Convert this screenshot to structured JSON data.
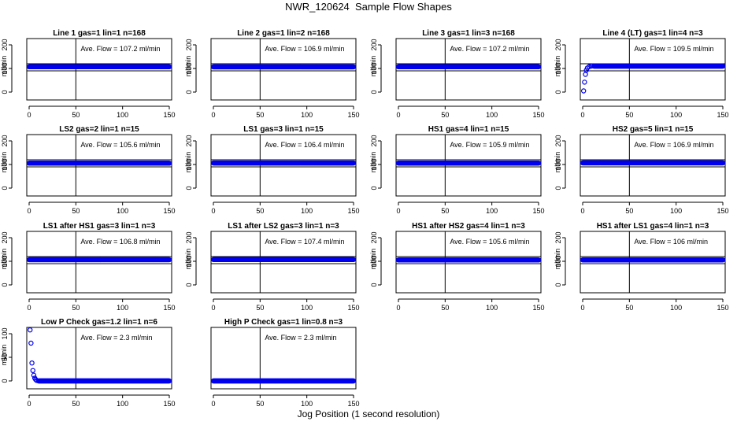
{
  "figure": {
    "title": "NWR_120624  Sample Flow Shapes",
    "xlabel": "Jog Position (1 second resolution)",
    "point_color": "#0000ee"
  },
  "chart_data": [
    {
      "type": "scatter",
      "title": "Line 1 gas=1 lin=1 n=168",
      "annotation": "Ave. Flow = 107.2  ml/min",
      "ylabel": "ml/min",
      "xlim": [
        0,
        150
      ],
      "ylim": [
        0,
        200
      ],
      "xticks": [
        0,
        50,
        100,
        150
      ],
      "yticks": [
        0,
        100,
        200
      ],
      "ytick_labels": [
        "0",
        "100",
        "200"
      ],
      "vline": 50,
      "hlines": [
        90,
        120
      ],
      "x_range": [
        0,
        150
      ],
      "y": 107.2
    },
    {
      "type": "scatter",
      "title": "Line 2 gas=1 lin=2 n=168",
      "annotation": "Ave. Flow = 106.9  ml/min",
      "ylabel": "ml/min",
      "xlim": [
        0,
        150
      ],
      "ylim": [
        0,
        200
      ],
      "xticks": [
        0,
        50,
        100,
        150
      ],
      "yticks": [
        0,
        100,
        200
      ],
      "ytick_labels": [
        "0",
        "100",
        "200"
      ],
      "vline": 50,
      "hlines": [
        90,
        120
      ],
      "x_range": [
        0,
        150
      ],
      "y": 106.9
    },
    {
      "type": "scatter",
      "title": "Line 3 gas=1 lin=3 n=168",
      "annotation": "Ave. Flow = 107.2  ml/min",
      "ylabel": "ml/min",
      "xlim": [
        0,
        150
      ],
      "ylim": [
        0,
        200
      ],
      "xticks": [
        0,
        50,
        100,
        150
      ],
      "yticks": [
        0,
        100,
        200
      ],
      "ytick_labels": [
        "0",
        "100",
        "200"
      ],
      "vline": 50,
      "hlines": [
        90,
        120
      ],
      "x_range": [
        0,
        150
      ],
      "y": 107.2
    },
    {
      "type": "scatter",
      "title": "Line 4 (LT) gas=1 lin=4 n=3",
      "annotation": "Ave. Flow = 109.5  ml/min",
      "ylabel": "ml/min",
      "xlim": [
        0,
        150
      ],
      "ylim": [
        0,
        200
      ],
      "xticks": [
        0,
        50,
        100,
        150
      ],
      "yticks": [
        0,
        100,
        200
      ],
      "ytick_labels": [
        "0",
        "100",
        "200"
      ],
      "vline": 50,
      "hlines": [
        90,
        120
      ],
      "x_range": [
        12,
        150
      ],
      "y": 110,
      "extra_points": [
        {
          "x": 1,
          "y": 5
        },
        {
          "x": 2,
          "y": 42
        },
        {
          "x": 3,
          "y": 75
        },
        {
          "x": 4,
          "y": 93
        },
        {
          "x": 5,
          "y": 102
        },
        {
          "x": 7,
          "y": 108
        },
        {
          "x": 9,
          "y": 110
        },
        {
          "x": 10,
          "y": 111
        }
      ]
    },
    {
      "type": "scatter",
      "title": "LS2 gas=2 lin=1 n=15",
      "annotation": "Ave. Flow = 105.6  ml/min",
      "ylabel": "ml/min",
      "xlim": [
        0,
        150
      ],
      "ylim": [
        0,
        200
      ],
      "xticks": [
        0,
        50,
        100,
        150
      ],
      "yticks": [
        0,
        100,
        200
      ],
      "ytick_labels": [
        "0",
        "100",
        "200"
      ],
      "vline": 50,
      "hlines": [
        90,
        120
      ],
      "x_range": [
        0,
        150
      ],
      "y": 105.6
    },
    {
      "type": "scatter",
      "title": "LS1 gas=3 lin=1 n=15",
      "annotation": "Ave. Flow = 106.4  ml/min",
      "ylabel": "ml/min",
      "xlim": [
        0,
        150
      ],
      "ylim": [
        0,
        200
      ],
      "xticks": [
        0,
        50,
        100,
        150
      ],
      "yticks": [
        0,
        100,
        200
      ],
      "ytick_labels": [
        "0",
        "100",
        "200"
      ],
      "vline": 50,
      "hlines": [
        90,
        120
      ],
      "x_range": [
        0,
        150
      ],
      "y": 106.4
    },
    {
      "type": "scatter",
      "title": "HS1 gas=4 lin=1 n=15",
      "annotation": "Ave. Flow = 105.9  ml/min",
      "ylabel": "ml/min",
      "xlim": [
        0,
        150
      ],
      "ylim": [
        0,
        200
      ],
      "xticks": [
        0,
        50,
        100,
        150
      ],
      "yticks": [
        0,
        100,
        200
      ],
      "ytick_labels": [
        "0",
        "100",
        "200"
      ],
      "vline": 50,
      "hlines": [
        90,
        120
      ],
      "x_range": [
        0,
        150
      ],
      "y": 105.9
    },
    {
      "type": "scatter",
      "title": "HS2 gas=5 lin=1 n=15",
      "annotation": "Ave. Flow = 106.9  ml/min",
      "ylabel": "ml/min",
      "xlim": [
        0,
        150
      ],
      "ylim": [
        0,
        200
      ],
      "xticks": [
        0,
        50,
        100,
        150
      ],
      "yticks": [
        0,
        100,
        200
      ],
      "ytick_labels": [
        "0",
        "100",
        "200"
      ],
      "vline": 50,
      "hlines": [
        90,
        120
      ],
      "x_range": [
        0,
        150
      ],
      "y": 106.9
    },
    {
      "type": "scatter",
      "title": "LS1 after HS1 gas=3 lin=1 n=3",
      "annotation": "Ave. Flow = 106.8  ml/min",
      "ylabel": "ml/min",
      "xlim": [
        0,
        150
      ],
      "ylim": [
        0,
        200
      ],
      "xticks": [
        0,
        50,
        100,
        150
      ],
      "yticks": [
        0,
        100,
        200
      ],
      "ytick_labels": [
        "0",
        "100",
        "200"
      ],
      "vline": 50,
      "hlines": [
        90,
        120
      ],
      "x_range": [
        0,
        150
      ],
      "y": 106.8
    },
    {
      "type": "scatter",
      "title": "LS1 after LS2 gas=3 lin=1 n=3",
      "annotation": "Ave. Flow = 107.4  ml/min",
      "ylabel": "ml/min",
      "xlim": [
        0,
        150
      ],
      "ylim": [
        0,
        200
      ],
      "xticks": [
        0,
        50,
        100,
        150
      ],
      "yticks": [
        0,
        100,
        200
      ],
      "ytick_labels": [
        "0",
        "100",
        "200"
      ],
      "vline": 50,
      "hlines": [
        90,
        120
      ],
      "x_range": [
        0,
        150
      ],
      "y": 107.4
    },
    {
      "type": "scatter",
      "title": "HS1 after HS2 gas=4 lin=1 n=3",
      "annotation": "Ave. Flow = 105.6  ml/min",
      "ylabel": "ml/min",
      "xlim": [
        0,
        150
      ],
      "ylim": [
        0,
        200
      ],
      "xticks": [
        0,
        50,
        100,
        150
      ],
      "yticks": [
        0,
        100,
        200
      ],
      "ytick_labels": [
        "0",
        "100",
        "200"
      ],
      "vline": 50,
      "hlines": [
        90,
        120
      ],
      "x_range": [
        0,
        150
      ],
      "y": 105.6
    },
    {
      "type": "scatter",
      "title": "HS1 after LS1 gas=4 lin=1 n=3",
      "annotation": "Ave. Flow = 106  ml/min",
      "ylabel": "ml/min",
      "xlim": [
        0,
        150
      ],
      "ylim": [
        0,
        200
      ],
      "xticks": [
        0,
        50,
        100,
        150
      ],
      "yticks": [
        0,
        100,
        200
      ],
      "ytick_labels": [
        "0",
        "100",
        "200"
      ],
      "vline": 50,
      "hlines": [
        90,
        120
      ],
      "x_range": [
        0,
        150
      ],
      "y": 106
    },
    {
      "type": "scatter",
      "title": "Low P Check gas=1.2 lin=1 n=6",
      "annotation": "Ave. Flow = 2.3  ml/min",
      "ylabel": "ml/min",
      "xlim": [
        0,
        150
      ],
      "ylim": [
        0,
        100
      ],
      "xticks": [
        0,
        50,
        100,
        150
      ],
      "yticks": [
        0,
        50,
        100
      ],
      "ytick_labels": [
        "0",
        "50",
        "100"
      ],
      "vline": 50,
      "hlines": [],
      "x_range": [
        10,
        150
      ],
      "y": 0,
      "extra_points": [
        {
          "x": 1,
          "y": 108
        },
        {
          "x": 2,
          "y": 80
        },
        {
          "x": 3,
          "y": 38
        },
        {
          "x": 4,
          "y": 22
        },
        {
          "x": 5,
          "y": 12
        },
        {
          "x": 6,
          "y": 6
        },
        {
          "x": 7,
          "y": 3
        },
        {
          "x": 8,
          "y": 1
        }
      ]
    },
    {
      "type": "scatter",
      "title": "High P Check gas=1 lin=0.8 n=3",
      "annotation": "Ave. Flow = 2.3  ml/min",
      "ylabel": "",
      "xlim": [
        0,
        150
      ],
      "ylim": [
        0,
        100
      ],
      "xticks": [
        0,
        50,
        100,
        150
      ],
      "yticks": [],
      "ytick_labels": [],
      "vline": 50,
      "hlines": [],
      "x_range": [
        0,
        150
      ],
      "y": 0
    }
  ]
}
